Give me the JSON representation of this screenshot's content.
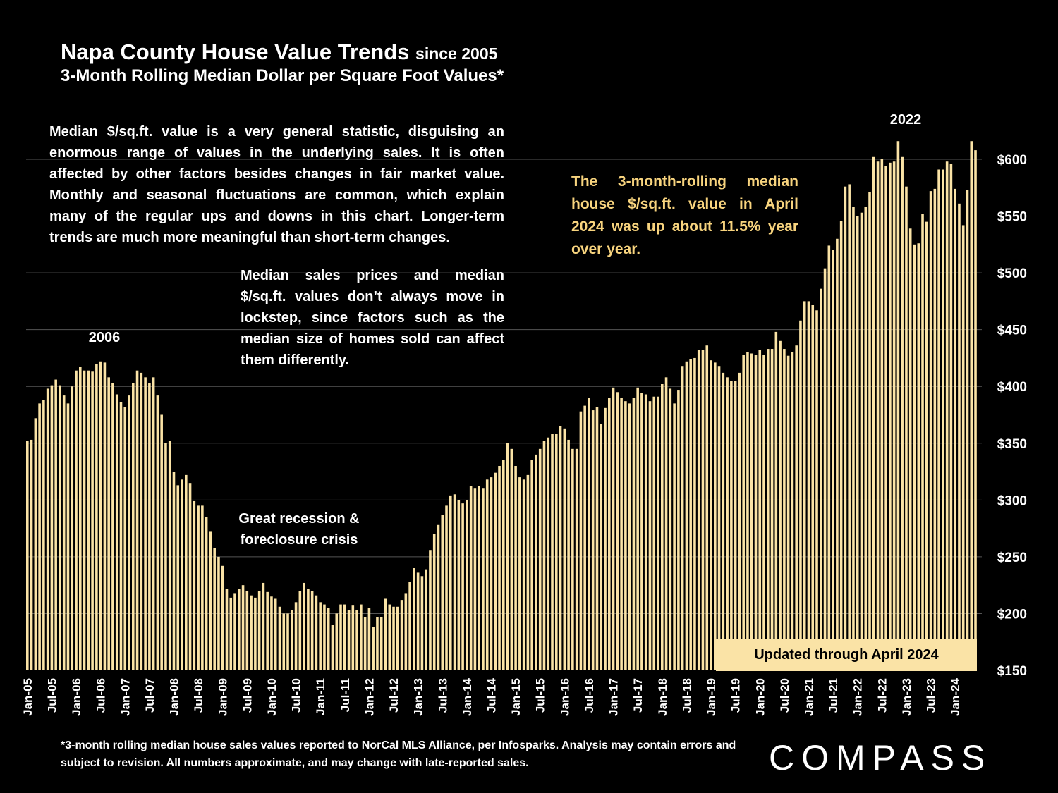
{
  "header": {
    "title": "Napa County House Value Trends",
    "title_since": "since 2005",
    "subtitle": "3-Month Rolling Median Dollar per Square Foot Values*"
  },
  "notes": {
    "general": "Median $/sq.ft. value is a very general statistic, disguising an enormous range of values in the underlying sales. It is often affected by other factors besides changes in fair market value. Monthly and seasonal fluctuations are common, which explain many of the regular ups and downs in this chart. Longer-term trends are much more meaningful than short-term changes.",
    "lockstep": "Median sales prices and median $/sq.ft. values don’t always move in lockstep, since factors such as the median size of homes sold can affect them differently.",
    "yoy": "The 3-month-rolling median house $/sq.ft. value in April 2024 was up about 11.5% year over year."
  },
  "annotations": {
    "peak_2006": "2006",
    "peak_2022": "2022",
    "recession": "Great recession & foreclosure crisis",
    "updated": "Updated through April 2024"
  },
  "footnote": "*3-month rolling median house sales values reported to NorCal MLS Alliance, per Infosparks. Analysis may contain errors and subject to revision. All numbers approximate, and may change with late-reported sales.",
  "brand": "COMPASS",
  "colors": {
    "background": "#000000",
    "bar": "#fae3a6",
    "highlight_text": "#f8d47e",
    "grid": "#555555"
  },
  "chart_data": {
    "type": "bar",
    "title": "Napa County House Value Trends since 2005",
    "subtitle": "3-Month Rolling Median Dollar per Square Foot Values*",
    "ylim": [
      150,
      620
    ],
    "y_ticks": [
      150,
      200,
      250,
      300,
      350,
      400,
      450,
      500,
      550,
      600
    ],
    "y_tick_labels": [
      "$150",
      "$200",
      "$250",
      "$300",
      "$350",
      "$400",
      "$450",
      "$500",
      "$550",
      "$600"
    ],
    "y_axis_side": "right",
    "grid": true,
    "x_tick_labels": [
      "Jan-05",
      "Jul-05",
      "Jan-06",
      "Jul-06",
      "Jan-07",
      "Jul-07",
      "Jan-08",
      "Jul-08",
      "Jan-09",
      "Jul-09",
      "Jan-10",
      "Jul-10",
      "Jan-11",
      "Jul-11",
      "Jan-12",
      "Jul-12",
      "Jan-13",
      "Jul-13",
      "Jan-14",
      "Jul-14",
      "Jan-15",
      "Jul-15",
      "Jan-16",
      "Jul-16",
      "Jan-17",
      "Jul-17",
      "Jan-18",
      "Jul-18",
      "Jan-19",
      "Jul-19",
      "Jan-20",
      "Jul-20",
      "Jan-21",
      "Jul-21",
      "Jan-22",
      "Jul-22",
      "Jan-23",
      "Jul-23",
      "Jan-24"
    ],
    "series": [
      {
        "start_month": "Jan-05",
        "end_month": "Apr-24",
        "values": [
          352,
          353,
          372,
          385,
          388,
          398,
          401,
          406,
          401,
          392,
          385,
          400,
          414,
          417,
          414,
          414,
          413,
          420,
          422,
          421,
          408,
          403,
          393,
          386,
          382,
          392,
          403,
          414,
          412,
          408,
          403,
          408,
          392,
          375,
          350,
          352,
          325,
          313,
          318,
          322,
          315,
          299,
          295,
          295,
          285,
          272,
          258,
          250,
          242,
          222,
          214,
          218,
          222,
          225,
          220,
          216,
          214,
          220,
          227,
          219,
          215,
          213,
          206,
          200,
          200,
          203,
          210,
          220,
          227,
          222,
          220,
          216,
          210,
          208,
          205,
          190,
          200,
          208,
          208,
          203,
          207,
          203,
          208,
          197,
          205,
          188,
          197,
          197,
          213,
          208,
          206,
          206,
          212,
          218,
          228,
          240,
          236,
          233,
          239,
          256,
          270,
          278,
          287,
          295,
          304,
          305,
          300,
          297,
          300,
          312,
          310,
          312,
          310,
          318,
          320,
          324,
          330,
          335,
          350,
          345,
          330,
          320,
          318,
          322,
          335,
          340,
          345,
          352,
          355,
          358,
          358,
          365,
          363,
          353,
          345,
          345,
          378,
          383,
          390,
          379,
          382,
          367,
          381,
          390,
          399,
          395,
          390,
          387,
          385,
          390,
          399,
          394,
          393,
          387,
          391,
          391,
          402,
          408,
          398,
          385,
          397,
          418,
          422,
          424,
          425,
          432,
          432,
          436,
          423,
          421,
          418,
          412,
          408,
          405,
          405,
          412,
          428,
          430,
          429,
          428,
          432,
          428,
          433,
          433,
          448,
          440,
          433,
          427,
          430,
          436,
          458,
          475,
          475,
          472,
          467,
          486,
          504,
          524,
          520,
          530,
          546,
          576,
          578,
          558,
          550,
          553,
          558,
          571,
          602,
          598,
          600,
          594,
          597,
          598,
          616,
          602,
          576,
          539,
          525,
          526,
          552,
          545,
          572,
          574,
          591,
          591,
          598,
          596,
          574,
          561,
          542,
          573,
          616,
          608
        ]
      }
    ],
    "annotations": [
      "2006",
      "2022",
      "Great recession & foreclosure crisis",
      "Updated through April 2024"
    ]
  }
}
